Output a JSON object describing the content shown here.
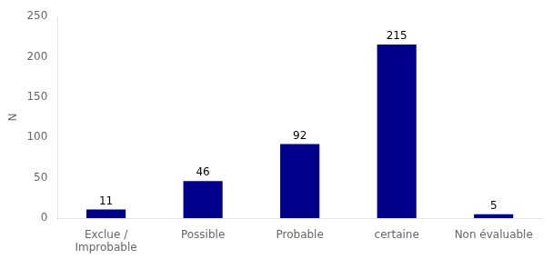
{
  "chart_data": {
    "type": "bar",
    "categories": [
      "Exclue /\nImprobable",
      "Possible",
      "Probable",
      "certaine",
      "Non évaluable"
    ],
    "values": [
      11,
      46,
      92,
      215,
      5
    ],
    "color": "#00008B",
    "ylabel": "N",
    "ylim": [
      0,
      250
    ],
    "yticks": [
      0,
      50,
      100,
      150,
      200,
      250
    ],
    "grid": false,
    "data_labels": true
  }
}
